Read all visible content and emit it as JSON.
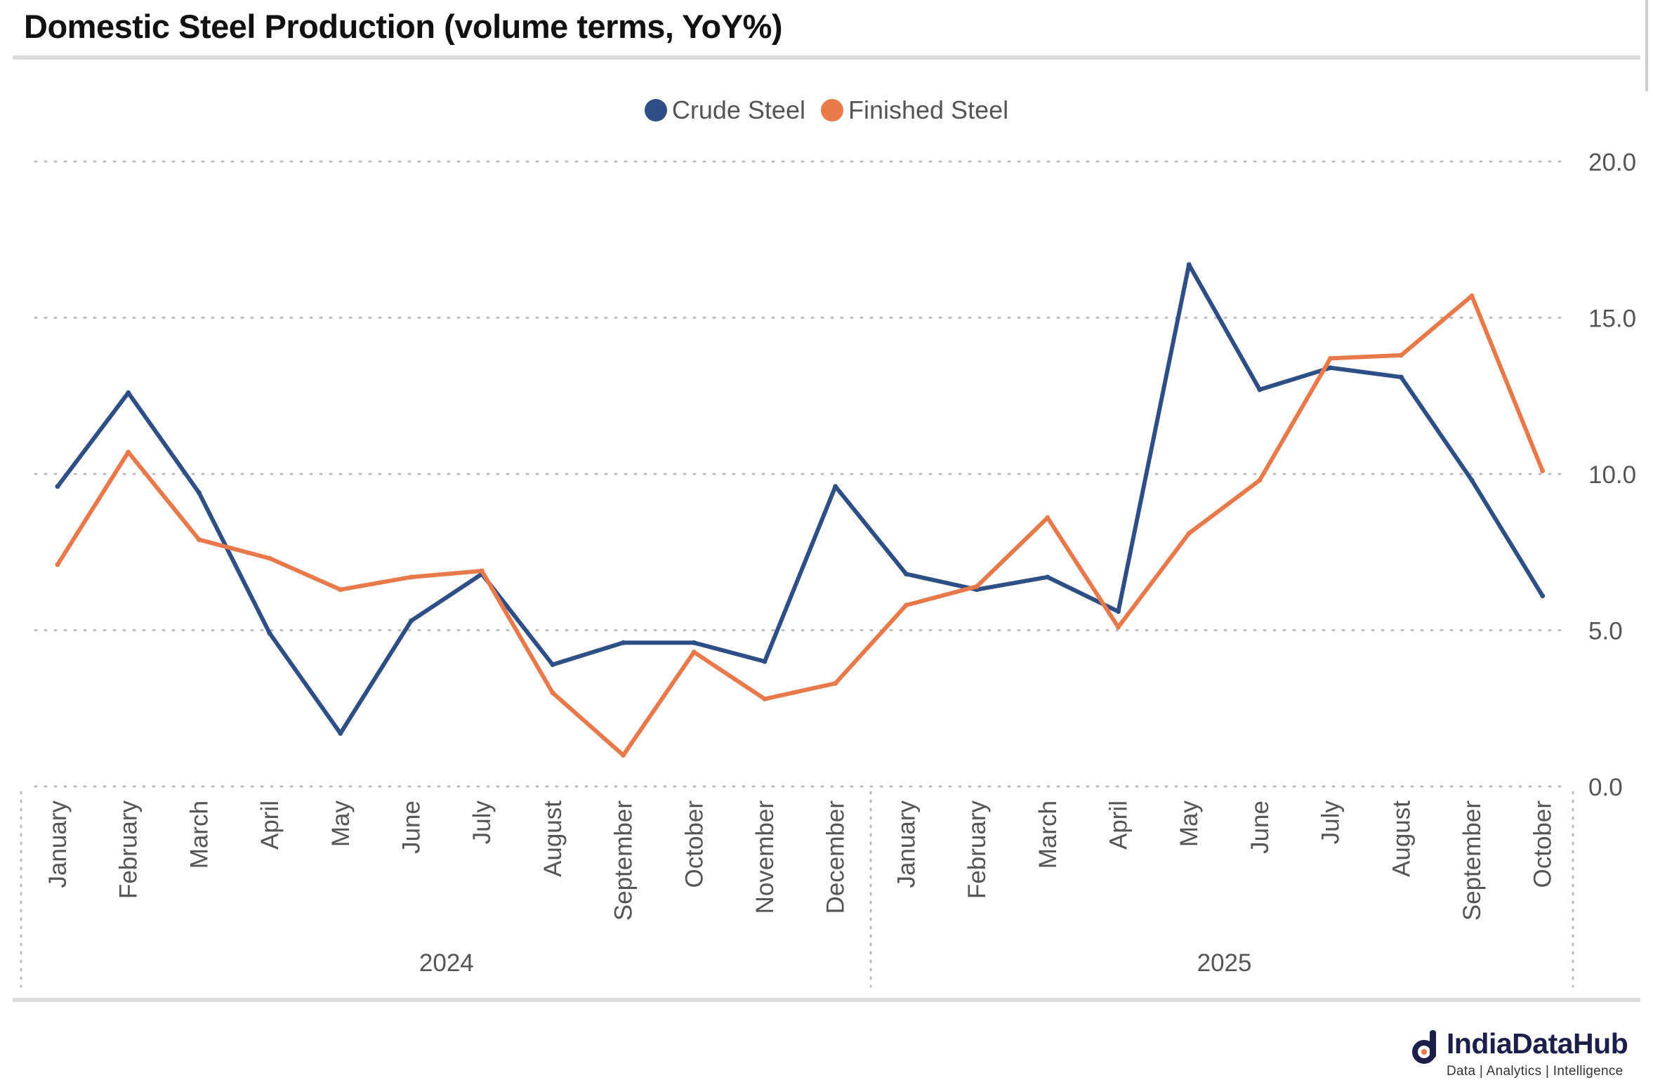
{
  "title": "Domestic Steel Production (volume terms, YoY%)",
  "chart_data": {
    "type": "line",
    "title": "Domestic Steel Production (volume terms, YoY%)",
    "categories": [
      "January",
      "February",
      "March",
      "April",
      "May",
      "June",
      "July",
      "August",
      "September",
      "October",
      "November",
      "December",
      "January",
      "February",
      "March",
      "April",
      "May",
      "June",
      "July",
      "August",
      "September",
      "October"
    ],
    "groups": [
      {
        "label": "2024",
        "start": 0,
        "end": 11
      },
      {
        "label": "2025",
        "start": 12,
        "end": 21
      }
    ],
    "series": [
      {
        "name": "Crude Steel",
        "color": "#2e4f86",
        "values": [
          9.6,
          12.6,
          9.4,
          4.9,
          1.7,
          5.3,
          6.8,
          3.9,
          4.6,
          4.6,
          4.0,
          9.6,
          6.8,
          6.3,
          6.7,
          5.6,
          16.7,
          12.7,
          13.4,
          13.1,
          9.8,
          6.1
        ]
      },
      {
        "name": "Finished Steel",
        "color": "#e8794a",
        "values": [
          7.1,
          10.7,
          7.9,
          7.3,
          6.3,
          6.7,
          6.9,
          3.0,
          1.0,
          4.3,
          2.8,
          3.3,
          5.8,
          6.4,
          8.6,
          5.1,
          8.1,
          9.8,
          13.7,
          13.8,
          15.7,
          10.1
        ]
      }
    ],
    "yticks": [
      "0.0",
      "5.0",
      "10.0",
      "15.0",
      "20.0"
    ],
    "ylim": [
      0,
      20
    ],
    "grid": true,
    "legend_position": "top-center",
    "xlabel": "",
    "ylabel": ""
  },
  "legend": {
    "crude": "Crude Steel",
    "finished": "Finished Steel"
  },
  "brand": {
    "name": "IndiaDataHub",
    "tagline": "Data | Analytics | Intelligence",
    "color": "#1c1f4a"
  }
}
